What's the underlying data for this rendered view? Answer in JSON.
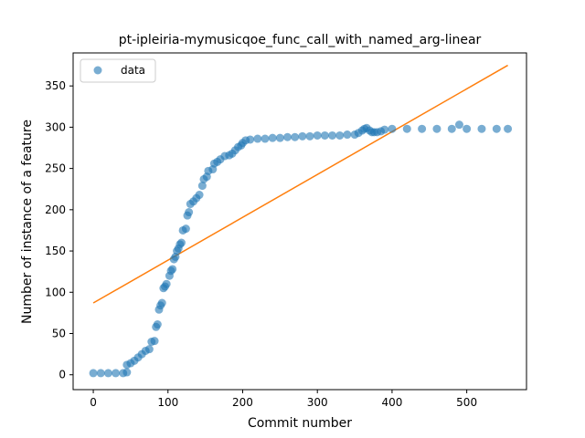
{
  "chart_data": {
    "type": "scatter",
    "title": "pt-ipleiria-mymusicqoe_func_call_with_named_arg-linear",
    "xlabel": "Commit number",
    "ylabel": "Number of instance of a feature",
    "xlim": [
      -27,
      580
    ],
    "ylim": [
      -18,
      390
    ],
    "x_ticks": [
      0,
      100,
      200,
      300,
      400,
      500
    ],
    "y_ticks": [
      0,
      50,
      100,
      150,
      200,
      250,
      300,
      350
    ],
    "grid": false,
    "legend": {
      "placement": "top-left",
      "entries": [
        "data"
      ]
    },
    "colors": {
      "data": "#1f77b4",
      "fit": "#ff7f0e"
    },
    "series": [
      {
        "name": "data",
        "kind": "scatter",
        "points": [
          [
            0,
            2
          ],
          [
            10,
            2
          ],
          [
            20,
            2
          ],
          [
            30,
            2
          ],
          [
            40,
            2
          ],
          [
            45,
            3
          ],
          [
            45,
            12
          ],
          [
            50,
            14
          ],
          [
            55,
            17
          ],
          [
            60,
            21
          ],
          [
            65,
            25
          ],
          [
            70,
            29
          ],
          [
            75,
            31
          ],
          [
            78,
            40
          ],
          [
            82,
            41
          ],
          [
            84,
            58
          ],
          [
            86,
            61
          ],
          [
            88,
            79
          ],
          [
            90,
            84
          ],
          [
            92,
            87
          ],
          [
            94,
            105
          ],
          [
            96,
            107
          ],
          [
            98,
            110
          ],
          [
            102,
            120
          ],
          [
            104,
            126
          ],
          [
            106,
            128
          ],
          [
            108,
            140
          ],
          [
            110,
            143
          ],
          [
            112,
            150
          ],
          [
            114,
            153
          ],
          [
            116,
            158
          ],
          [
            118,
            160
          ],
          [
            120,
            175
          ],
          [
            124,
            177
          ],
          [
            126,
            193
          ],
          [
            128,
            197
          ],
          [
            130,
            207
          ],
          [
            134,
            210
          ],
          [
            138,
            214
          ],
          [
            142,
            218
          ],
          [
            146,
            229
          ],
          [
            148,
            237
          ],
          [
            152,
            240
          ],
          [
            154,
            247
          ],
          [
            160,
            249
          ],
          [
            162,
            256
          ],
          [
            166,
            258
          ],
          [
            170,
            261
          ],
          [
            176,
            265
          ],
          [
            182,
            266
          ],
          [
            186,
            268
          ],
          [
            190,
            272
          ],
          [
            194,
            276
          ],
          [
            198,
            278
          ],
          [
            200,
            281
          ],
          [
            204,
            284
          ],
          [
            210,
            285
          ],
          [
            220,
            286
          ],
          [
            230,
            286
          ],
          [
            240,
            287
          ],
          [
            250,
            287
          ],
          [
            260,
            288
          ],
          [
            270,
            288
          ],
          [
            280,
            289
          ],
          [
            290,
            289
          ],
          [
            300,
            290
          ],
          [
            310,
            290
          ],
          [
            320,
            290
          ],
          [
            330,
            290
          ],
          [
            340,
            291
          ],
          [
            350,
            291
          ],
          [
            355,
            293
          ],
          [
            360,
            296
          ],
          [
            363,
            298
          ],
          [
            366,
            299
          ],
          [
            370,
            296
          ],
          [
            373,
            294
          ],
          [
            376,
            294
          ],
          [
            380,
            294
          ],
          [
            385,
            295
          ],
          [
            390,
            297
          ],
          [
            400,
            298
          ],
          [
            420,
            298
          ],
          [
            440,
            298
          ],
          [
            460,
            298
          ],
          [
            480,
            298
          ],
          [
            490,
            303
          ],
          [
            500,
            298
          ],
          [
            520,
            298
          ],
          [
            540,
            298
          ],
          [
            555,
            298
          ]
        ]
      },
      {
        "name": "",
        "kind": "line",
        "x": [
          0,
          555
        ],
        "y": [
          87,
          375
        ]
      }
    ]
  }
}
